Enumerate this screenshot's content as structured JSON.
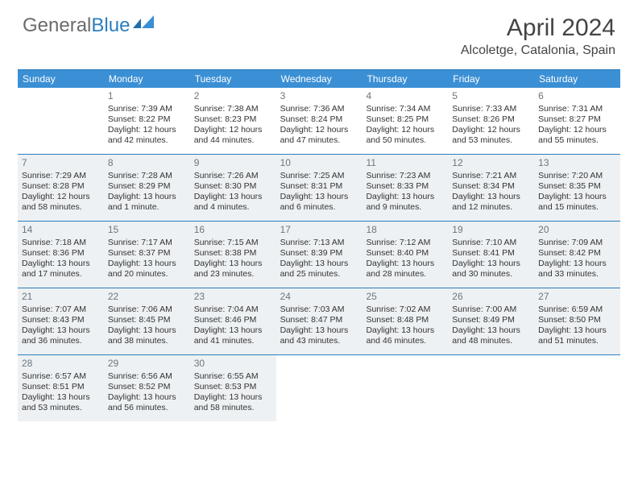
{
  "logo": {
    "word1": "General",
    "word2": "Blue"
  },
  "title": "April 2024",
  "location": "Alcoletge, Catalonia, Spain",
  "colors": {
    "header_bar": "#3b8fd4",
    "rule": "#2a7fbf",
    "shade": "#eef1f3",
    "logo_gray": "#6b6b6b",
    "logo_blue": "#2a7fbf",
    "text": "#333333",
    "daynum": "#6b7680"
  },
  "day_headers": [
    "Sunday",
    "Monday",
    "Tuesday",
    "Wednesday",
    "Thursday",
    "Friday",
    "Saturday"
  ],
  "weeks": [
    [
      {
        "n": "",
        "sr": "",
        "ss": "",
        "dl": "",
        "shade": false
      },
      {
        "n": "1",
        "sr": "Sunrise: 7:39 AM",
        "ss": "Sunset: 8:22 PM",
        "dl": "Daylight: 12 hours and 42 minutes.",
        "shade": false
      },
      {
        "n": "2",
        "sr": "Sunrise: 7:38 AM",
        "ss": "Sunset: 8:23 PM",
        "dl": "Daylight: 12 hours and 44 minutes.",
        "shade": false
      },
      {
        "n": "3",
        "sr": "Sunrise: 7:36 AM",
        "ss": "Sunset: 8:24 PM",
        "dl": "Daylight: 12 hours and 47 minutes.",
        "shade": false
      },
      {
        "n": "4",
        "sr": "Sunrise: 7:34 AM",
        "ss": "Sunset: 8:25 PM",
        "dl": "Daylight: 12 hours and 50 minutes.",
        "shade": false
      },
      {
        "n": "5",
        "sr": "Sunrise: 7:33 AM",
        "ss": "Sunset: 8:26 PM",
        "dl": "Daylight: 12 hours and 53 minutes.",
        "shade": false
      },
      {
        "n": "6",
        "sr": "Sunrise: 7:31 AM",
        "ss": "Sunset: 8:27 PM",
        "dl": "Daylight: 12 hours and 55 minutes.",
        "shade": false
      }
    ],
    [
      {
        "n": "7",
        "sr": "Sunrise: 7:29 AM",
        "ss": "Sunset: 8:28 PM",
        "dl": "Daylight: 12 hours and 58 minutes.",
        "shade": true
      },
      {
        "n": "8",
        "sr": "Sunrise: 7:28 AM",
        "ss": "Sunset: 8:29 PM",
        "dl": "Daylight: 13 hours and 1 minute.",
        "shade": true
      },
      {
        "n": "9",
        "sr": "Sunrise: 7:26 AM",
        "ss": "Sunset: 8:30 PM",
        "dl": "Daylight: 13 hours and 4 minutes.",
        "shade": true
      },
      {
        "n": "10",
        "sr": "Sunrise: 7:25 AM",
        "ss": "Sunset: 8:31 PM",
        "dl": "Daylight: 13 hours and 6 minutes.",
        "shade": true
      },
      {
        "n": "11",
        "sr": "Sunrise: 7:23 AM",
        "ss": "Sunset: 8:33 PM",
        "dl": "Daylight: 13 hours and 9 minutes.",
        "shade": true
      },
      {
        "n": "12",
        "sr": "Sunrise: 7:21 AM",
        "ss": "Sunset: 8:34 PM",
        "dl": "Daylight: 13 hours and 12 minutes.",
        "shade": true
      },
      {
        "n": "13",
        "sr": "Sunrise: 7:20 AM",
        "ss": "Sunset: 8:35 PM",
        "dl": "Daylight: 13 hours and 15 minutes.",
        "shade": true
      }
    ],
    [
      {
        "n": "14",
        "sr": "Sunrise: 7:18 AM",
        "ss": "Sunset: 8:36 PM",
        "dl": "Daylight: 13 hours and 17 minutes.",
        "shade": true
      },
      {
        "n": "15",
        "sr": "Sunrise: 7:17 AM",
        "ss": "Sunset: 8:37 PM",
        "dl": "Daylight: 13 hours and 20 minutes.",
        "shade": true
      },
      {
        "n": "16",
        "sr": "Sunrise: 7:15 AM",
        "ss": "Sunset: 8:38 PM",
        "dl": "Daylight: 13 hours and 23 minutes.",
        "shade": true
      },
      {
        "n": "17",
        "sr": "Sunrise: 7:13 AM",
        "ss": "Sunset: 8:39 PM",
        "dl": "Daylight: 13 hours and 25 minutes.",
        "shade": true
      },
      {
        "n": "18",
        "sr": "Sunrise: 7:12 AM",
        "ss": "Sunset: 8:40 PM",
        "dl": "Daylight: 13 hours and 28 minutes.",
        "shade": true
      },
      {
        "n": "19",
        "sr": "Sunrise: 7:10 AM",
        "ss": "Sunset: 8:41 PM",
        "dl": "Daylight: 13 hours and 30 minutes.",
        "shade": true
      },
      {
        "n": "20",
        "sr": "Sunrise: 7:09 AM",
        "ss": "Sunset: 8:42 PM",
        "dl": "Daylight: 13 hours and 33 minutes.",
        "shade": true
      }
    ],
    [
      {
        "n": "21",
        "sr": "Sunrise: 7:07 AM",
        "ss": "Sunset: 8:43 PM",
        "dl": "Daylight: 13 hours and 36 minutes.",
        "shade": true
      },
      {
        "n": "22",
        "sr": "Sunrise: 7:06 AM",
        "ss": "Sunset: 8:45 PM",
        "dl": "Daylight: 13 hours and 38 minutes.",
        "shade": true
      },
      {
        "n": "23",
        "sr": "Sunrise: 7:04 AM",
        "ss": "Sunset: 8:46 PM",
        "dl": "Daylight: 13 hours and 41 minutes.",
        "shade": true
      },
      {
        "n": "24",
        "sr": "Sunrise: 7:03 AM",
        "ss": "Sunset: 8:47 PM",
        "dl": "Daylight: 13 hours and 43 minutes.",
        "shade": true
      },
      {
        "n": "25",
        "sr": "Sunrise: 7:02 AM",
        "ss": "Sunset: 8:48 PM",
        "dl": "Daylight: 13 hours and 46 minutes.",
        "shade": true
      },
      {
        "n": "26",
        "sr": "Sunrise: 7:00 AM",
        "ss": "Sunset: 8:49 PM",
        "dl": "Daylight: 13 hours and 48 minutes.",
        "shade": true
      },
      {
        "n": "27",
        "sr": "Sunrise: 6:59 AM",
        "ss": "Sunset: 8:50 PM",
        "dl": "Daylight: 13 hours and 51 minutes.",
        "shade": true
      }
    ],
    [
      {
        "n": "28",
        "sr": "Sunrise: 6:57 AM",
        "ss": "Sunset: 8:51 PM",
        "dl": "Daylight: 13 hours and 53 minutes.",
        "shade": true
      },
      {
        "n": "29",
        "sr": "Sunrise: 6:56 AM",
        "ss": "Sunset: 8:52 PM",
        "dl": "Daylight: 13 hours and 56 minutes.",
        "shade": true
      },
      {
        "n": "30",
        "sr": "Sunrise: 6:55 AM",
        "ss": "Sunset: 8:53 PM",
        "dl": "Daylight: 13 hours and 58 minutes.",
        "shade": true
      },
      {
        "n": "",
        "sr": "",
        "ss": "",
        "dl": "",
        "shade": false
      },
      {
        "n": "",
        "sr": "",
        "ss": "",
        "dl": "",
        "shade": false
      },
      {
        "n": "",
        "sr": "",
        "ss": "",
        "dl": "",
        "shade": false
      },
      {
        "n": "",
        "sr": "",
        "ss": "",
        "dl": "",
        "shade": false
      }
    ]
  ]
}
